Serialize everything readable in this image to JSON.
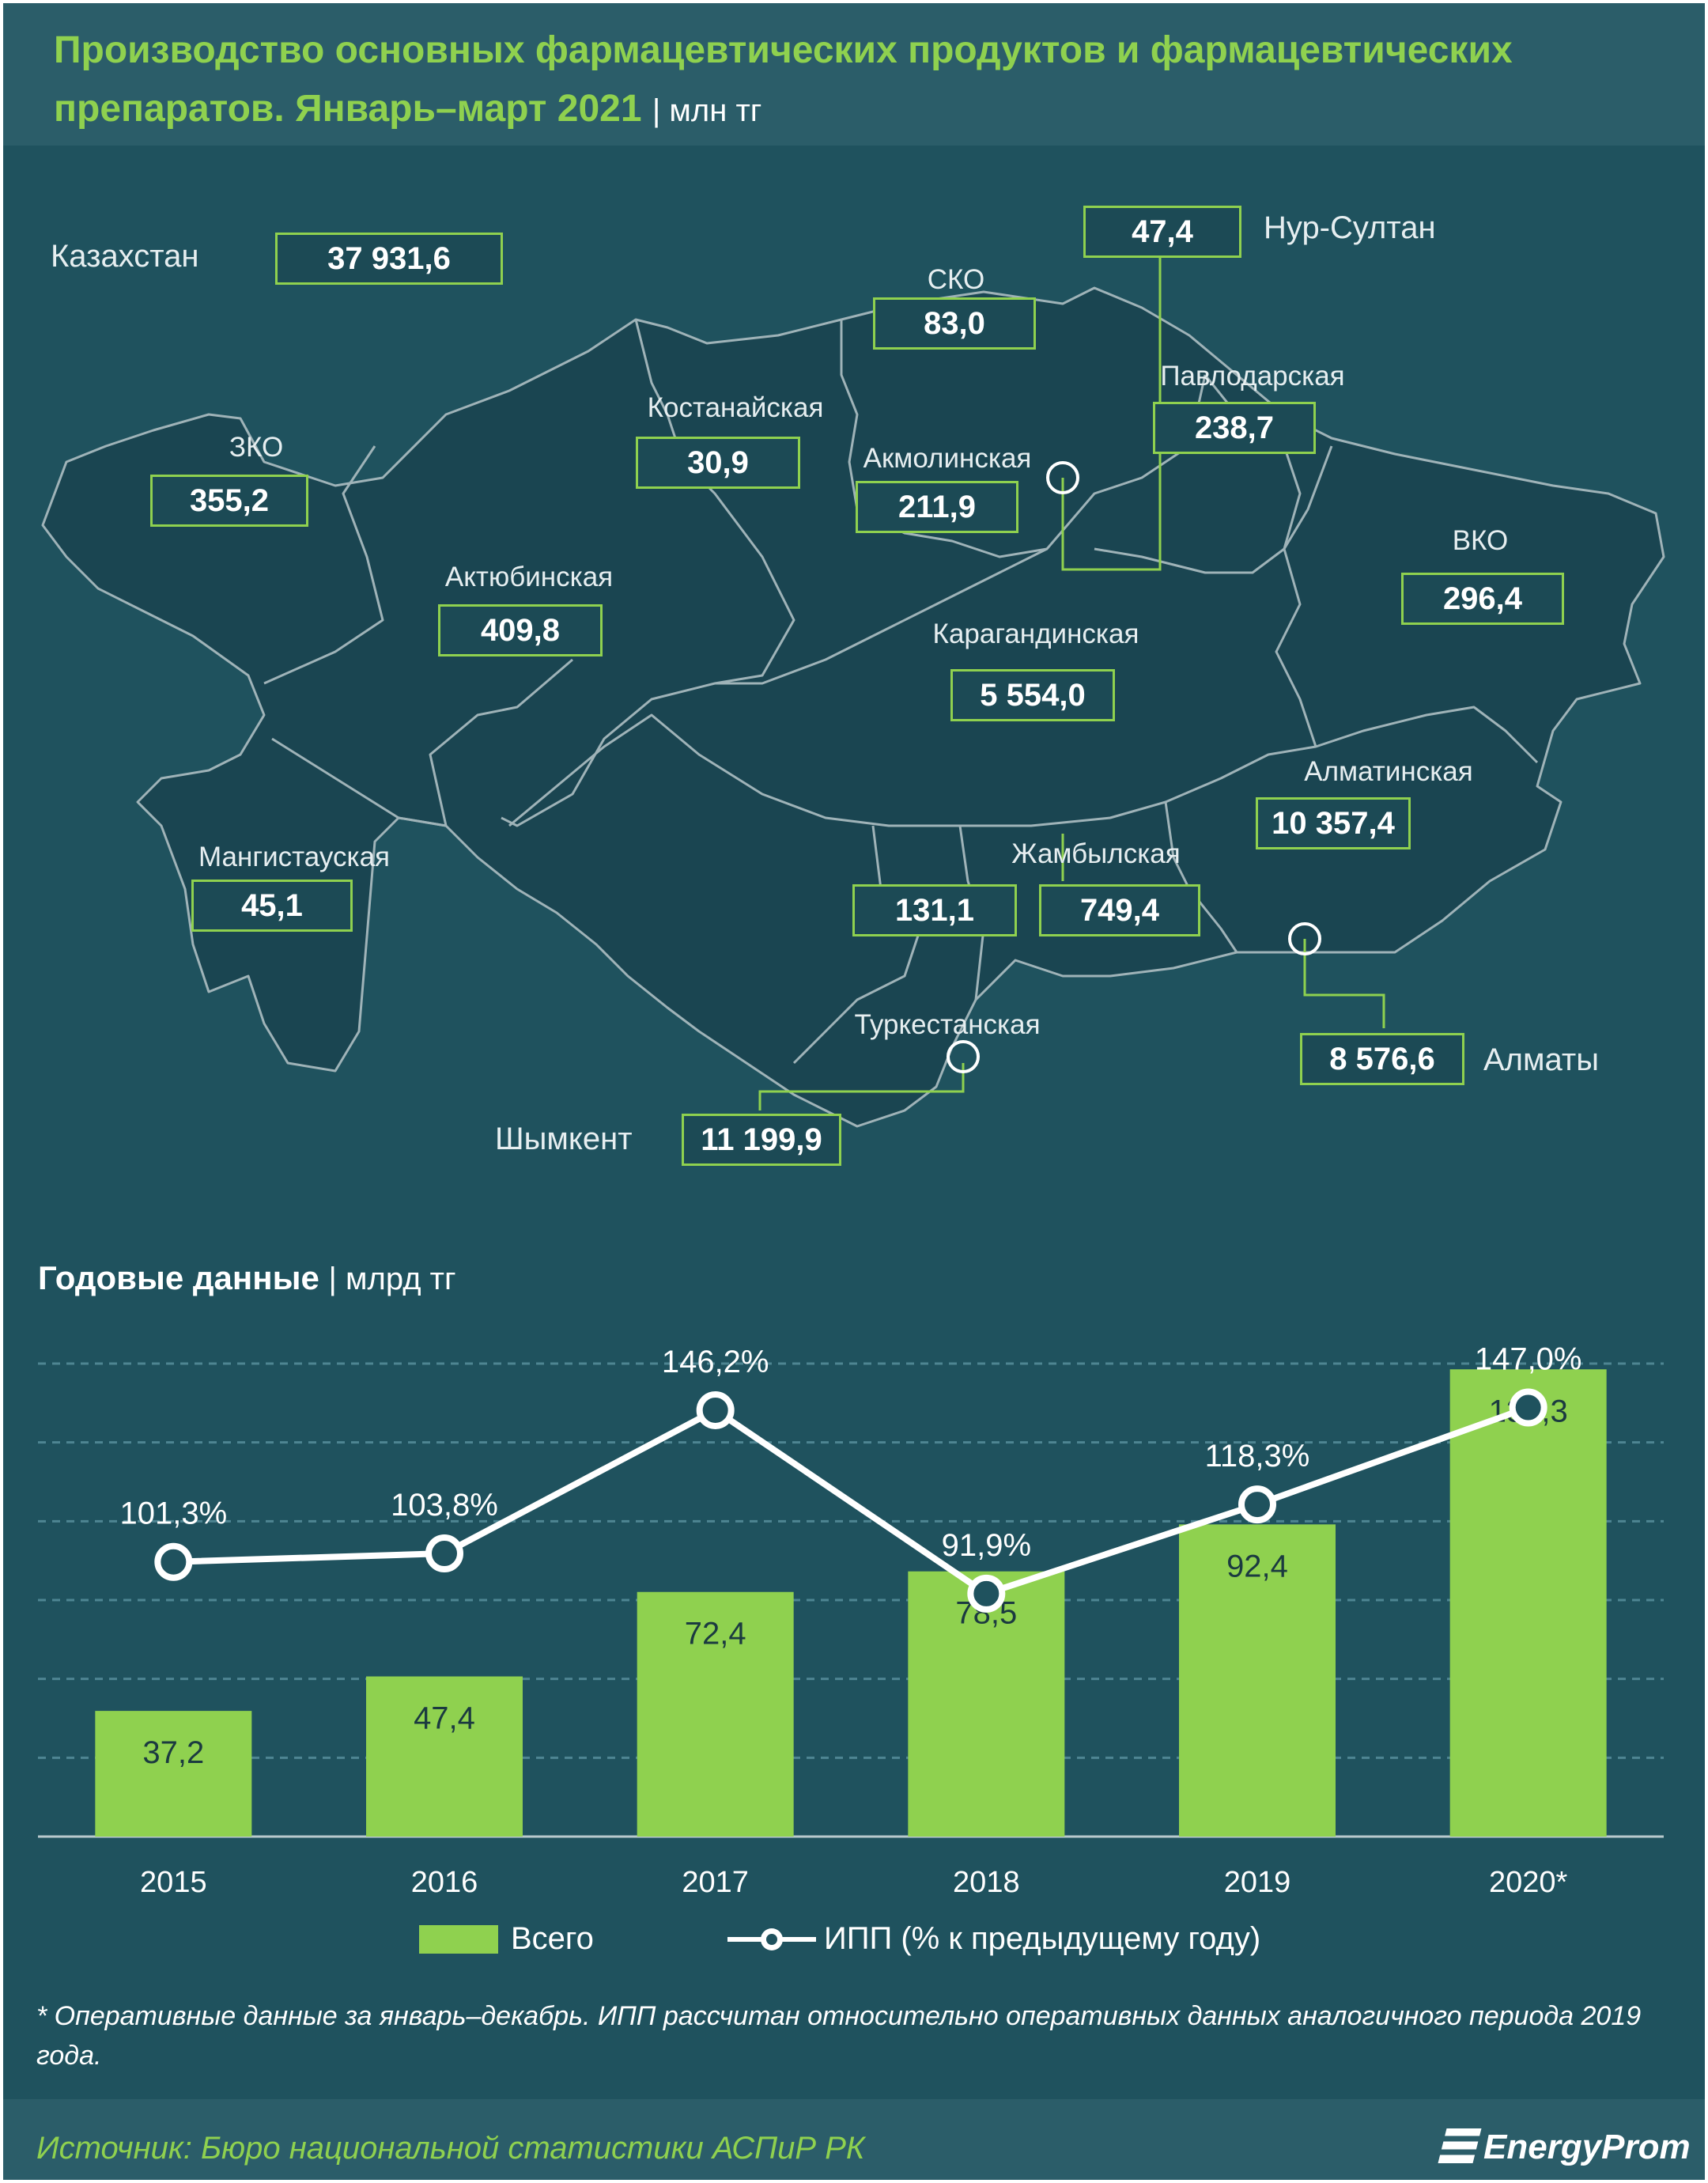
{
  "header": {
    "title_line1": "Производство основных фармацевтических продуктов и фармацевтических",
    "title_line2": "препаратов. Январь–март 2021",
    "title_unit": "| млн тг"
  },
  "map": {
    "total_label": "Казахстан",
    "total_value": "37 931,6",
    "regions": [
      {
        "name": "ЗКО",
        "value": "355,2"
      },
      {
        "name": "Актюбинская",
        "value": "409,8"
      },
      {
        "name": "Мангистауская",
        "value": "45,1"
      },
      {
        "name": "Костанайская",
        "value": "30,9"
      },
      {
        "name": "СКО",
        "value": "83,0"
      },
      {
        "name": "Акмолинская",
        "value": "211,9"
      },
      {
        "name": "Павлодарская",
        "value": "238,7"
      },
      {
        "name": "ВКО",
        "value": "296,4"
      },
      {
        "name": "Карагандинская",
        "value": "5 554,0"
      },
      {
        "name": "Алматинская",
        "value": "10 357,4"
      },
      {
        "name": "Жамбылская",
        "value": "749,4"
      },
      {
        "name": "",
        "value": "131,1"
      },
      {
        "name": "Туркестанская",
        "value": ""
      }
    ],
    "cities": [
      {
        "name": "Нур-Султан",
        "value": "47,4"
      },
      {
        "name": "Алматы",
        "value": "8 576,6"
      },
      {
        "name": "Шымкент",
        "value": "11 199,9"
      }
    ]
  },
  "annual": {
    "title": "Годовые данные",
    "unit": "| млрд тг"
  },
  "chart_data": {
    "type": "bar",
    "categories": [
      "2015",
      "2016",
      "2017",
      "2018",
      "2019",
      "2020*"
    ],
    "series": [
      {
        "name": "Всего",
        "type": "bar",
        "values": [
          37.2,
          47.4,
          72.4,
          78.5,
          92.4,
          138.3
        ],
        "labels": [
          "37,2",
          "47,4",
          "72,4",
          "78,5",
          "92,4",
          "138,3"
        ]
      },
      {
        "name": "ИПП (% к предыдущему году)",
        "type": "line",
        "values": [
          101.3,
          103.8,
          146.2,
          91.9,
          118.3,
          147.0
        ],
        "labels": [
          "101,3%",
          "103,8%",
          "146,2%",
          "91,9%",
          "118,3%",
          "147,0%"
        ]
      }
    ],
    "ylim": [
      0,
      140
    ],
    "y2lim": [
      20,
      160
    ],
    "grid": true,
    "legend": "bottom",
    "colors": {
      "bar": "#8fd14f",
      "line": "#ffffff"
    }
  },
  "legend": {
    "bar_label": "Всего",
    "line_label": "ИПП (% к предыдущему году)"
  },
  "footnote": "* Оперативные данные за январь–декабрь. ИПП рассчитан относительно оперативных данных аналогичного периода 2019 года.",
  "footer": {
    "source": "Источник: Бюро национальной статистики АСПиР РК",
    "brand": "EnergyProm"
  }
}
